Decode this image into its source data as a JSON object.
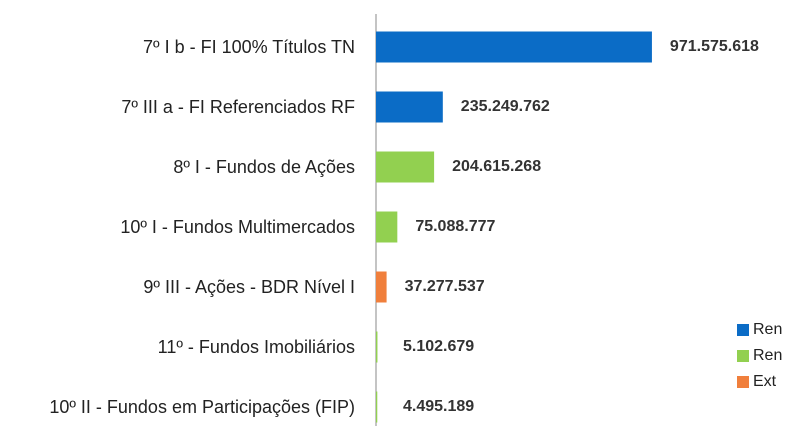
{
  "chart_data": {
    "type": "bar",
    "orientation": "horizontal",
    "categories": [
      "7º I b - FI 100% Títulos TN",
      "7º III a - FI Referenciados RF",
      "8º I - Fundos de Ações",
      "10º I - Fundos Multimercados",
      "9º III - Ações - BDR Nível I",
      "11º - Fundos Imobiliários",
      "10º II - Fundos em Participações (FIP)"
    ],
    "values": [
      971575618,
      235249762,
      204615268,
      75088777,
      37277537,
      5102679,
      4495189
    ],
    "value_labels": [
      "971.575.618",
      "235.249.762",
      "204.615.268",
      "75.088.777",
      "37.277.537",
      "5.102.679",
      "4.495.189"
    ],
    "colors": [
      "#0b6cc6",
      "#0b6cc6",
      "#92d050",
      "#92d050",
      "#f07f3c",
      "#92d050",
      "#92d050"
    ],
    "legend": [
      {
        "name": "Ren",
        "color": "#0b6cc6"
      },
      {
        "name": "Ren",
        "color": "#92d050"
      },
      {
        "name": "Ext",
        "color": "#f07f3c"
      }
    ],
    "xlim": [
      0,
      1000000000
    ]
  }
}
